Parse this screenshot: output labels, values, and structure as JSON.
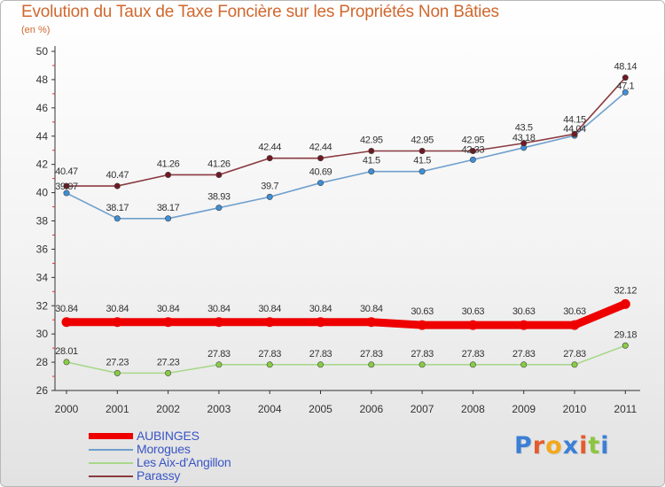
{
  "title": "Evolution du Taux de Taxe Foncière sur les Propriétés Non Bâties",
  "unit": "(en %)",
  "brand": {
    "letters": [
      "P",
      "r",
      "o",
      "x",
      "i",
      "t",
      "i"
    ],
    "colors": [
      "#3b7fd6",
      "#e45a2d",
      "#f2a81d",
      "#3b7fd6",
      "#e45a2d",
      "#8cc63f",
      "#3b7fd6"
    ]
  },
  "chart_data": {
    "type": "line",
    "title": "Evolution du Taux de Taxe Foncière sur les Propriétés Non Bâties",
    "ylabel": "(en %)",
    "ylim": [
      26,
      50
    ],
    "yticks": [
      26,
      28,
      30,
      32,
      34,
      36,
      38,
      40,
      42,
      44,
      46,
      48,
      50
    ],
    "grid": false,
    "legend_position": "bottom-left",
    "x": [
      "2000",
      "2001",
      "2002",
      "2003",
      "2004",
      "2005",
      "2006",
      "2007",
      "2008",
      "2009",
      "2010",
      "2011"
    ],
    "series": [
      {
        "name": "AUBINGES",
        "color": "#ee0000",
        "marker": "#ee0000",
        "values": [
          30.84,
          30.84,
          30.84,
          30.84,
          30.84,
          30.84,
          30.84,
          30.63,
          30.63,
          30.63,
          30.63,
          32.12
        ],
        "labels": [
          "30.84",
          "30.84",
          "30.84",
          "30.84",
          "30.84",
          "30.84",
          "30.84",
          "30.63",
          "30.63",
          "30.63",
          "30.63",
          "32.12"
        ]
      },
      {
        "name": "Morogues",
        "color": "#6f9fcd",
        "marker": "#3d8fd8",
        "values": [
          39.97,
          38.17,
          38.17,
          38.93,
          39.7,
          40.69,
          41.5,
          41.5,
          42.33,
          43.18,
          44.04,
          47.1
        ],
        "labels": [
          "39.97",
          "38.17",
          "38.17",
          "38.93",
          "39.7",
          "40.69",
          "41.5",
          "41.5",
          "42.33",
          "43.18",
          "44.04",
          "47.1"
        ]
      },
      {
        "name": "Les Aix-d'Angillon",
        "color": "#a8d88a",
        "marker": "#88cc44",
        "values": [
          28.01,
          27.23,
          27.23,
          27.83,
          27.83,
          27.83,
          27.83,
          27.83,
          27.83,
          27.83,
          27.83,
          29.18
        ],
        "labels": [
          "28.01",
          "27.23",
          "27.23",
          "27.83",
          "27.83",
          "27.83",
          "27.83",
          "27.83",
          "27.83",
          "27.83",
          "27.83",
          "29.18"
        ]
      },
      {
        "name": "Parassy",
        "color": "#8a3a40",
        "marker": "#6e1a22",
        "values": [
          40.47,
          40.47,
          41.26,
          41.26,
          42.44,
          42.44,
          42.95,
          42.95,
          42.95,
          43.5,
          44.15,
          48.14
        ],
        "labels": [
          "40.47",
          "40.47",
          "41.26",
          "41.26",
          "42.44",
          "42.44",
          "42.95",
          "42.95",
          "42.95",
          "43.5",
          "44.15",
          "48.14"
        ]
      }
    ]
  }
}
